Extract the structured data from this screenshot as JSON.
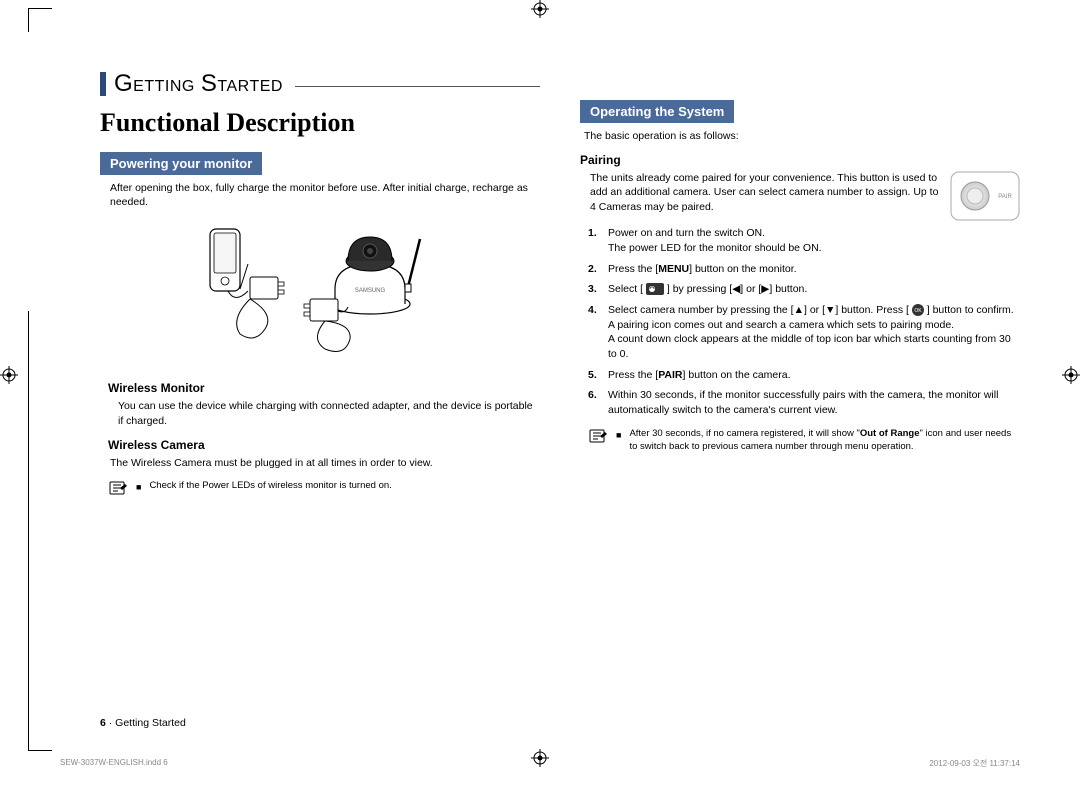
{
  "colors": {
    "accent_bar": "#2a4a7a",
    "blue_box": "#4a6a9a",
    "blue_box_text": "#ffffff",
    "text": "#000000",
    "footer_gray": "#888888"
  },
  "fonts": {
    "body_size_pt": 10.5,
    "h1_family": "serif",
    "h1_size_pt": 26
  },
  "crop_marks": true,
  "registration_marks": true,
  "left": {
    "section_title": "GETTING STARTED",
    "h1": "Functional Description",
    "box1": "Powering your monitor",
    "box1_text": "After opening the box, fully charge the monitor before use. After initial charge, recharge as needed.",
    "sub1": "Wireless Monitor",
    "sub1_text": "You can use the device while charging with connected adapter, and the device is portable if charged.",
    "sub2": "Wireless Camera",
    "sub2_text": "The Wireless Camera must be plugged in at all times in order to view.",
    "note1": "Check if the Power LEDs of wireless monitor is turned on."
  },
  "right": {
    "box1": "Operating the System",
    "box1_text": "The basic operation is as follows:",
    "sub1": "Pairing",
    "pairing_intro": "The units already come paired for your convenience. This button is used to add an additional camera. User can select camera number to assign. Up to 4 Cameras may be paired.",
    "pair_label": "PAIR",
    "steps": [
      {
        "n": "1.",
        "t": "Power on and turn the switch ON.\nThe power LED for the monitor should be ON."
      },
      {
        "n": "2.",
        "t": "Press the [<b>MENU</b>] button on the monitor."
      },
      {
        "n": "3.",
        "t": "Select [ <svg class='inline-icon' width='18' height='12'><rect x='0' y='0' width='18' height='12' rx='2' fill='#333'/><circle cx='6' cy='6' r='3' fill='#fff'/><path d='M4 6 A2 2 0 0 1 8 6' stroke='#333' fill='none' stroke-width='0.8'/></svg> ] by pressing [◀] or [▶] button."
      },
      {
        "n": "4.",
        "t": "Select camera number by pressing the [▲] or [▼] button. Press [ <svg class='inline-icon' width='12' height='12'><circle cx='6' cy='6' r='6' fill='#333'/><text x='6' y='8' font-size='5' fill='#fff' text-anchor='middle'>OK</text></svg> ] button to confirm.\nA pairing icon comes out and search a camera which sets to pairing mode.\nA count down clock appears at the middle of top icon bar which starts counting from 30 to 0."
      },
      {
        "n": "5.",
        "t": "Press the [<b>PAIR</b>] button on the camera."
      },
      {
        "n": "6.",
        "t": "Within 30 seconds, if the monitor successfully pairs with the camera, the monitor will automatically switch to the camera's current view."
      }
    ],
    "note1": "After 30 seconds, if no camera registered, it will show \"<b>Out of Range</b>\" icon and user needs to switch back to previous camera number through menu operation."
  },
  "footer": {
    "page_num": "6",
    "page_label": "· Getting Started"
  },
  "print": {
    "file": "SEW-3037W-ENGLISH.indd   6",
    "stamp": "2012-09-03   오전 11:37:14"
  }
}
